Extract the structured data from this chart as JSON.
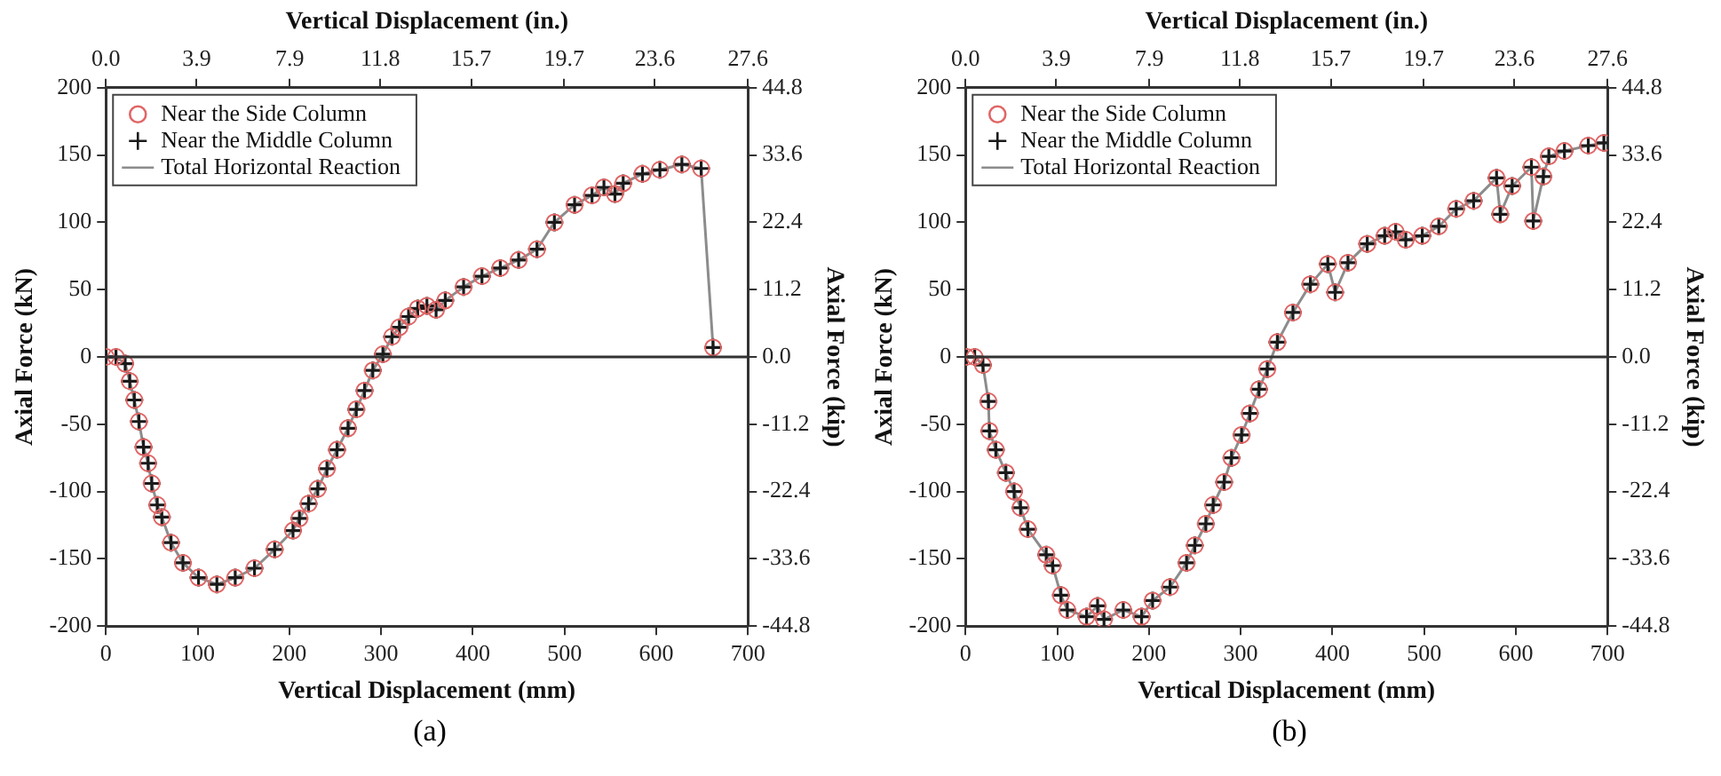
{
  "chart_data": [
    {
      "type": "scatter",
      "xlabel": "Vertical Displacement (mm)",
      "x2label": "Vertical Displacement (in.)",
      "ylabel": "Axial Force (kN)",
      "y2label": "Axial Force (kip)",
      "x": [
        0,
        11,
        21,
        26,
        31,
        36,
        41,
        46,
        50,
        56,
        61,
        71,
        84,
        101,
        121,
        141,
        162,
        184,
        204,
        211,
        221,
        231,
        241,
        252,
        264,
        273,
        282,
        291,
        302,
        312,
        320,
        330,
        340,
        350,
        360,
        370,
        390,
        410,
        430,
        450,
        470,
        489,
        511,
        530,
        543,
        555,
        564,
        585,
        604,
        628,
        649,
        662
      ],
      "series": [
        {
          "name": "Near the Side Column",
          "marker": "circle",
          "color": "#e06666",
          "values": [
            0,
            0,
            -5,
            -18,
            -32,
            -48,
            -67,
            -79,
            -94,
            -110,
            -119,
            -138,
            -153,
            -164,
            -169,
            -164,
            -157,
            -143,
            -129,
            -120,
            -109,
            -98,
            -83,
            -69,
            -53,
            -39,
            -25,
            -10,
            2,
            15,
            22,
            30,
            36,
            38,
            35,
            42,
            52,
            60,
            66,
            72,
            80,
            100,
            113,
            120,
            126,
            121,
            129,
            136,
            139,
            143,
            140,
            7
          ]
        },
        {
          "name": "Near the Middle Column",
          "marker": "cross",
          "color": "#1a1a1a",
          "values": [
            0,
            0,
            -5,
            -18,
            -32,
            -48,
            -67,
            -79,
            -94,
            -110,
            -119,
            -138,
            -153,
            -164,
            -169,
            -164,
            -157,
            -143,
            -129,
            -120,
            -109,
            -98,
            -83,
            -69,
            -53,
            -39,
            -25,
            -10,
            2,
            15,
            22,
            30,
            36,
            38,
            35,
            42,
            52,
            60,
            66,
            72,
            80,
            100,
            113,
            120,
            126,
            121,
            129,
            136,
            139,
            143,
            140,
            7
          ]
        },
        {
          "name": "Total Horizontal Reaction",
          "type": "line",
          "marker": "none",
          "color": "#8c8c8c",
          "values": [
            0,
            0,
            -5,
            -18,
            -32,
            -48,
            -67,
            -79,
            -94,
            -110,
            -119,
            -138,
            -153,
            -164,
            -169,
            -164,
            -157,
            -143,
            -129,
            -120,
            -109,
            -98,
            -83,
            -69,
            -53,
            -39,
            -25,
            -10,
            2,
            15,
            22,
            30,
            36,
            38,
            35,
            42,
            52,
            60,
            66,
            72,
            80,
            100,
            113,
            120,
            126,
            121,
            129,
            136,
            139,
            143,
            140,
            7
          ]
        }
      ],
      "xlim": [
        0,
        700
      ],
      "xticks": [
        0,
        100,
        200,
        300,
        400,
        500,
        600,
        700
      ],
      "x2lim": [
        0,
        27.6
      ],
      "x2ticks": [
        {
          "value": 0,
          "label": "0.0"
        },
        3.9,
        7.9,
        11.8,
        15.7,
        19.7,
        23.6,
        27.6
      ],
      "ylim": [
        -200,
        200
      ],
      "yticks": [
        -200,
        -150,
        -100,
        -50,
        0,
        50,
        100,
        150,
        200
      ],
      "y2lim": [
        -44.8,
        44.8
      ],
      "y2ticks": [
        -44.8,
        -33.6,
        -22.4,
        -11.2,
        {
          "value": 0,
          "label": "0.0"
        },
        11.2,
        22.4,
        33.6,
        44.8
      ],
      "ref_lines": [
        {
          "axis": "y",
          "value": 0,
          "color": "#333333"
        }
      ],
      "legend": "top left",
      "grid": false,
      "annotations": [
        "(a)"
      ]
    },
    {
      "type": "scatter",
      "xlabel": "Vertical Displacement (mm)",
      "x2label": "Vertical Displacement (in.)",
      "ylabel": "Axial Force (kN)",
      "y2label": "Axial Force (kip)",
      "x": [
        1,
        10,
        19,
        25,
        26,
        33,
        44,
        53,
        60,
        68,
        88,
        95,
        104,
        111,
        132,
        144,
        151,
        172,
        192,
        204,
        223,
        241,
        250,
        262,
        270,
        282,
        290,
        301,
        310,
        320,
        329,
        340,
        357,
        376,
        395,
        403,
        417,
        438,
        457,
        469,
        480,
        498,
        516,
        535,
        554,
        579,
        583,
        596,
        617,
        619,
        630,
        636,
        653,
        679,
        696
      ],
      "series": [
        {
          "name": "Near the Side Column",
          "marker": "circle",
          "color": "#e06666",
          "values": [
            0,
            0,
            -6,
            -33,
            -55,
            -69,
            -86,
            -100,
            -112,
            -128,
            -147,
            -155,
            -177,
            -188,
            -193,
            -185,
            -195,
            -188,
            -193,
            -181,
            -171,
            -153,
            -140,
            -124,
            -110,
            -93,
            -75,
            -58,
            -42,
            -24,
            -9,
            11,
            33,
            54,
            69,
            48,
            70,
            84,
            90,
            93,
            87,
            90,
            97,
            110,
            116,
            133,
            106,
            127,
            141,
            101,
            134,
            149,
            153,
            157,
            159
          ]
        },
        {
          "name": "Near the Middle Column",
          "marker": "cross",
          "color": "#1a1a1a",
          "values": [
            0,
            0,
            -6,
            -33,
            -55,
            -69,
            -86,
            -100,
            -112,
            -128,
            -147,
            -155,
            -177,
            -188,
            -193,
            -185,
            -195,
            -188,
            -193,
            -181,
            -171,
            -153,
            -140,
            -124,
            -110,
            -93,
            -75,
            -58,
            -42,
            -24,
            -9,
            11,
            33,
            54,
            69,
            48,
            70,
            84,
            90,
            93,
            87,
            90,
            97,
            110,
            116,
            133,
            106,
            127,
            141,
            101,
            134,
            149,
            153,
            157,
            159
          ]
        },
        {
          "name": "Total Horizontal Reaction",
          "type": "line",
          "marker": "none",
          "color": "#8c8c8c",
          "values": [
            0,
            0,
            -6,
            -33,
            -55,
            -69,
            -86,
            -100,
            -112,
            -128,
            -147,
            -155,
            -177,
            -188,
            -193,
            -185,
            -195,
            -188,
            -193,
            -181,
            -171,
            -153,
            -140,
            -124,
            -110,
            -93,
            -75,
            -58,
            -42,
            -24,
            -9,
            11,
            33,
            54,
            69,
            48,
            70,
            84,
            90,
            93,
            87,
            90,
            97,
            110,
            116,
            133,
            106,
            127,
            141,
            101,
            134,
            149,
            153,
            157,
            159
          ]
        }
      ],
      "xlim": [
        0,
        700
      ],
      "xticks": [
        0,
        100,
        200,
        300,
        400,
        500,
        600,
        700
      ],
      "x2lim": [
        0,
        27.6
      ],
      "x2ticks": [
        {
          "value": 0,
          "label": "0.0"
        },
        3.9,
        7.9,
        11.8,
        15.7,
        19.7,
        23.6,
        27.6
      ],
      "ylim": [
        -200,
        200
      ],
      "yticks": [
        -200,
        -150,
        -100,
        -50,
        0,
        50,
        100,
        150,
        200
      ],
      "y2lim": [
        -44.8,
        44.8
      ],
      "y2ticks": [
        -44.8,
        -33.6,
        -22.4,
        -11.2,
        {
          "value": 0,
          "label": "0.0"
        },
        11.2,
        22.4,
        33.6,
        44.8
      ],
      "ref_lines": [
        {
          "axis": "y",
          "value": 0,
          "color": "#333333"
        }
      ],
      "legend": "top left",
      "grid": false,
      "annotations": [
        "(b)"
      ]
    }
  ]
}
